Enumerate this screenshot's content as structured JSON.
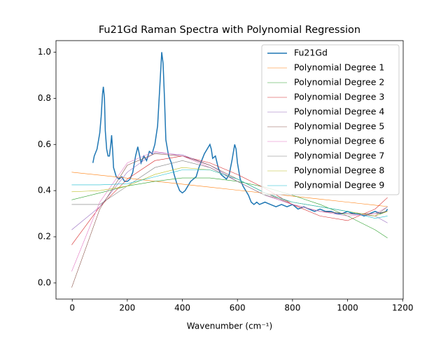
{
  "chart_data": {
    "type": "line",
    "title": "Fu21Gd Raman Spectra with Polynomial Regression",
    "x_label": "Wavenumber (cm⁻¹)",
    "xlim": [
      -59,
      1202
    ],
    "ylim": [
      -0.07,
      1.05
    ],
    "xticks": [
      0,
      200,
      400,
      600,
      800,
      1000,
      1200
    ],
    "yticks": [
      {
        "value": 0,
        "label": "0.0"
      },
      0.2,
      0.4,
      0.6,
      0.8,
      {
        "value": 1,
        "label": "1.0"
      }
    ],
    "legend": "upper right",
    "series": [
      {
        "name": "Fu21Gd",
        "color": "#1f77b4",
        "x": [
          75,
          80,
          90,
          100,
          105,
          110,
          113,
          117,
          120,
          125,
          130,
          135,
          140,
          143,
          147,
          150,
          160,
          170,
          180,
          190,
          200,
          210,
          220,
          230,
          238,
          245,
          250,
          260,
          270,
          280,
          290,
          300,
          310,
          318,
          325,
          330,
          335,
          340,
          350,
          360,
          370,
          380,
          390,
          400,
          410,
          420,
          430,
          440,
          450,
          460,
          470,
          480,
          490,
          500,
          505,
          510,
          520,
          530,
          540,
          550,
          560,
          570,
          580,
          590,
          595,
          600,
          610,
          620,
          630,
          640,
          650,
          660,
          670,
          680,
          700,
          720,
          740,
          760,
          780,
          800,
          820,
          840,
          860,
          880,
          900,
          920,
          940,
          960,
          980,
          1000,
          1020,
          1040,
          1060,
          1080,
          1100,
          1120,
          1140,
          1145
        ],
        "values": [
          0.52,
          0.55,
          0.58,
          0.65,
          0.72,
          0.82,
          0.85,
          0.8,
          0.66,
          0.58,
          0.55,
          0.55,
          0.6,
          0.64,
          0.57,
          0.5,
          0.46,
          0.45,
          0.46,
          0.44,
          0.44,
          0.45,
          0.48,
          0.55,
          0.59,
          0.55,
          0.52,
          0.55,
          0.53,
          0.57,
          0.56,
          0.6,
          0.68,
          0.85,
          1.0,
          0.95,
          0.8,
          0.62,
          0.55,
          0.52,
          0.47,
          0.43,
          0.4,
          0.39,
          0.4,
          0.42,
          0.44,
          0.45,
          0.46,
          0.5,
          0.53,
          0.56,
          0.58,
          0.6,
          0.58,
          0.54,
          0.55,
          0.5,
          0.47,
          0.46,
          0.45,
          0.47,
          0.53,
          0.6,
          0.58,
          0.52,
          0.45,
          0.42,
          0.4,
          0.38,
          0.35,
          0.34,
          0.35,
          0.34,
          0.35,
          0.34,
          0.33,
          0.34,
          0.33,
          0.34,
          0.32,
          0.33,
          0.32,
          0.31,
          0.32,
          0.31,
          0.31,
          0.3,
          0.3,
          0.31,
          0.3,
          0.3,
          0.29,
          0.3,
          0.31,
          0.3,
          0.31,
          0.32
        ]
      },
      {
        "name": "Polynomial Degree 1",
        "color": "#ff7f0e",
        "x": [
          -2,
          100,
          200,
          300,
          400,
          500,
          600,
          700,
          800,
          900,
          1000,
          1100,
          1145
        ],
        "values": [
          0.48,
          0.467,
          0.454,
          0.441,
          0.428,
          0.415,
          0.402,
          0.389,
          0.376,
          0.363,
          0.35,
          0.337,
          0.331
        ]
      },
      {
        "name": "Polynomial Degree 2",
        "color": "#2ca02c",
        "x": [
          -2,
          100,
          200,
          300,
          400,
          500,
          600,
          700,
          800,
          900,
          1000,
          1100,
          1145
        ],
        "values": [
          0.36,
          0.39,
          0.42,
          0.44,
          0.455,
          0.455,
          0.44,
          0.415,
          0.38,
          0.34,
          0.29,
          0.23,
          0.195
        ]
      },
      {
        "name": "Polynomial Degree 3",
        "color": "#d62728",
        "x": [
          -2,
          100,
          200,
          300,
          400,
          500,
          600,
          700,
          800,
          900,
          1000,
          1100,
          1145
        ],
        "values": [
          0.165,
          0.33,
          0.45,
          0.53,
          0.55,
          0.52,
          0.47,
          0.41,
          0.34,
          0.29,
          0.27,
          0.32,
          0.37
        ]
      },
      {
        "name": "Polynomial Degree 4",
        "color": "#9467bd",
        "x": [
          -2,
          100,
          200,
          300,
          400,
          500,
          600,
          700,
          800,
          900,
          1000,
          1100,
          1145
        ],
        "values": [
          0.23,
          0.33,
          0.48,
          0.565,
          0.555,
          0.51,
          0.44,
          0.38,
          0.34,
          0.31,
          0.3,
          0.29,
          0.26
        ]
      },
      {
        "name": "Polynomial Degree 5",
        "color": "#8c564b",
        "x": [
          -2,
          100,
          200,
          300,
          400,
          500,
          600,
          700,
          800,
          900,
          1000,
          1100,
          1145
        ],
        "values": [
          -0.02,
          0.32,
          0.51,
          0.56,
          0.55,
          0.51,
          0.45,
          0.39,
          0.34,
          0.31,
          0.3,
          0.3,
          0.31
        ]
      },
      {
        "name": "Polynomial Degree 6",
        "color": "#e377c2",
        "x": [
          -2,
          100,
          200,
          300,
          400,
          500,
          600,
          700,
          800,
          900,
          1000,
          1100,
          1145
        ],
        "values": [
          0.05,
          0.35,
          0.52,
          0.57,
          0.55,
          0.5,
          0.44,
          0.38,
          0.34,
          0.31,
          0.29,
          0.3,
          0.33
        ]
      },
      {
        "name": "Polynomial Degree 7",
        "color": "#7f7f7f",
        "x": [
          -2,
          100,
          200,
          300,
          400,
          500,
          600,
          700,
          800,
          900,
          1000,
          1100,
          1145
        ],
        "values": [
          0.34,
          0.34,
          0.42,
          0.5,
          0.53,
          0.5,
          0.44,
          0.38,
          0.35,
          0.33,
          0.31,
          0.29,
          0.33
        ]
      },
      {
        "name": "Polynomial Degree 8",
        "color": "#bcbd22",
        "x": [
          -2,
          100,
          200,
          300,
          400,
          500,
          600,
          700,
          800,
          900,
          1000,
          1100,
          1145
        ],
        "values": [
          0.395,
          0.4,
          0.42,
          0.47,
          0.5,
          0.49,
          0.45,
          0.39,
          0.35,
          0.33,
          0.31,
          0.29,
          0.31
        ]
      },
      {
        "name": "Polynomial Degree 9",
        "color": "#17becf",
        "x": [
          -2,
          100,
          200,
          300,
          400,
          500,
          600,
          700,
          800,
          900,
          1000,
          1100,
          1145
        ],
        "values": [
          0.425,
          0.425,
          0.43,
          0.46,
          0.49,
          0.49,
          0.45,
          0.39,
          0.35,
          0.33,
          0.31,
          0.28,
          0.29
        ]
      }
    ]
  }
}
